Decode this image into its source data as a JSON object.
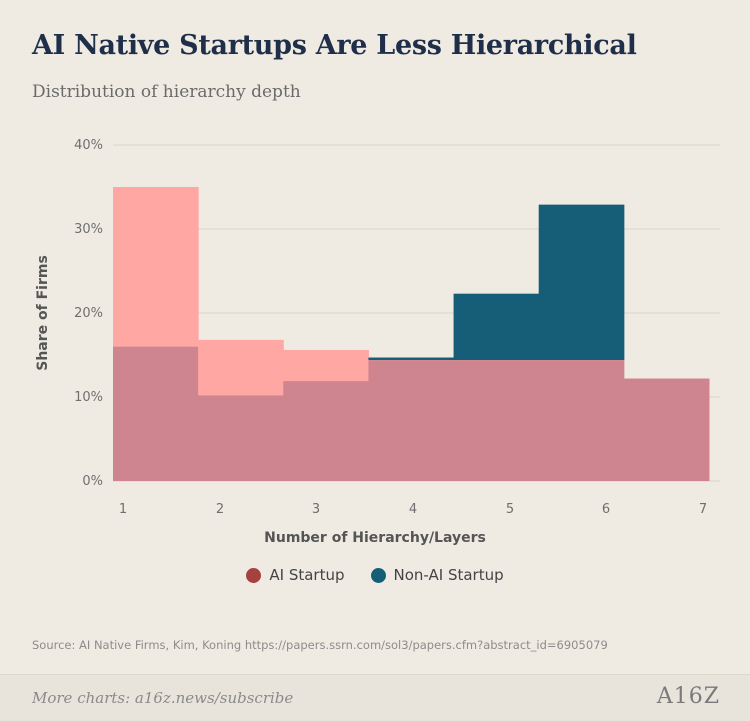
{
  "title": "AI Native Startups Are Less Hierarchical",
  "subtitle": "Distribution of hierarchy depth",
  "chart_data": {
    "type": "bar",
    "categories": [
      "1",
      "2",
      "3",
      "4",
      "5",
      "6",
      "7"
    ],
    "xlabel": "Number of Hierarchy/Layers",
    "ylabel": "Share of Firms",
    "ylim": [
      0,
      40
    ],
    "yticks": [
      "0%",
      "10%",
      "20%",
      "30%",
      "40%"
    ],
    "grid": true,
    "legend_position": "bottom",
    "series": [
      {
        "name": "AI Startup",
        "color": "#a5423f",
        "fill": "#ffa8a3",
        "values": [
          35,
          16.8,
          15.6,
          14.4,
          14.4,
          14.4,
          12.2
        ]
      },
      {
        "name": "Non-AI Startup",
        "color": "#165e78",
        "fill": "#165e78",
        "values": [
          16,
          10.2,
          11.9,
          14.7,
          22.3,
          32.9,
          12.2
        ]
      }
    ],
    "overlap_color": "#cf8590"
  },
  "legend": [
    {
      "label": "AI Startup",
      "color": "#a5423f"
    },
    {
      "label": "Non-AI Startup",
      "color": "#165e78"
    }
  ],
  "source": "Source: AI Native Firms, Kim, Koning https://papers.ssrn.com/sol3/papers.cfm?abstract_id=6905079",
  "footer": {
    "link": "More charts: a16z.news/subscribe",
    "logo": "A16Z"
  }
}
